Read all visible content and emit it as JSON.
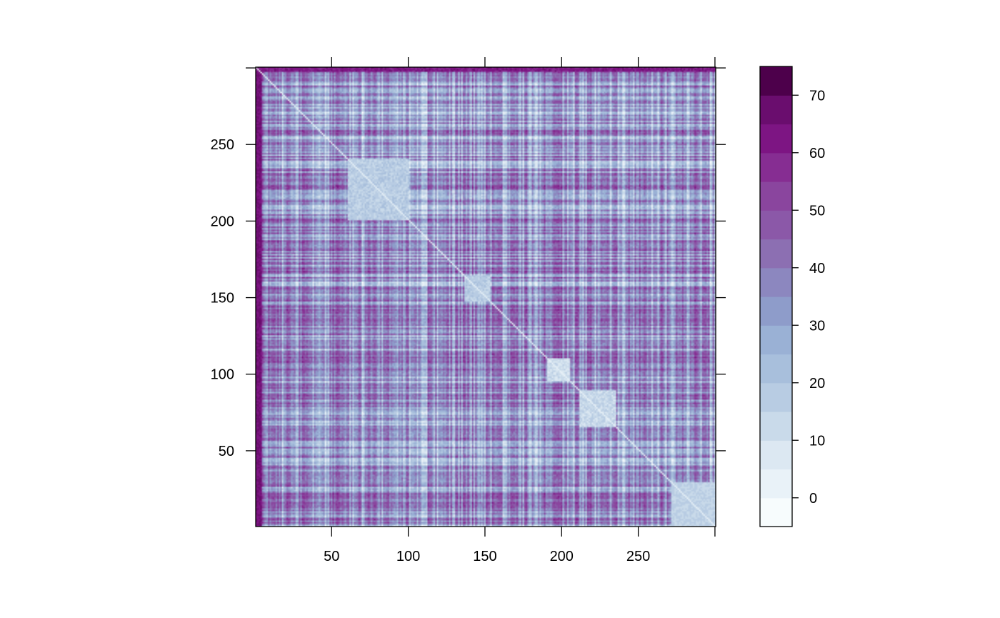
{
  "chart_data": {
    "type": "heatmap",
    "title": "",
    "xlabel": "",
    "ylabel": "",
    "n": 300,
    "xlim": [
      0.5,
      300.5
    ],
    "ylim": [
      0.5,
      300.5
    ],
    "x_ticks": [
      {
        "value": 50,
        "label": "50"
      },
      {
        "value": 100,
        "label": "100"
      },
      {
        "value": 150,
        "label": "150"
      },
      {
        "value": 200,
        "label": "200"
      },
      {
        "value": 250,
        "label": "250"
      },
      {
        "value": 300,
        "label": ""
      }
    ],
    "y_ticks": [
      {
        "value": 50,
        "label": "50"
      },
      {
        "value": 100,
        "label": "100"
      },
      {
        "value": 150,
        "label": "150"
      },
      {
        "value": 200,
        "label": "200"
      },
      {
        "value": 250,
        "label": "250"
      },
      {
        "value": 300,
        "label": ""
      }
    ],
    "diagonal_value": 0,
    "max_value": 75,
    "blocks": [
      {
        "from": 61,
        "to": 100,
        "value": 12
      },
      {
        "from": 137,
        "to": 153,
        "value": 12
      },
      {
        "from": 191,
        "to": 205,
        "value": 6
      },
      {
        "from": 212,
        "to": 235,
        "value": 8
      },
      {
        "from": 272,
        "to": 300,
        "value": 10
      }
    ],
    "colorbar": {
      "breaks": [
        -5,
        0,
        5,
        10,
        15,
        20,
        25,
        30,
        35,
        40,
        45,
        50,
        55,
        60,
        65,
        70,
        75
      ],
      "colors": [
        "#F7FCFD",
        "#E9F2F8",
        "#DCE8F2",
        "#C9DAEA",
        "#B8CCE3",
        "#A8BFDC",
        "#9AB1D5",
        "#8E9CCA",
        "#8C87BF",
        "#8C6FB2",
        "#8B58A8",
        "#8A459E",
        "#862D92",
        "#7D1583",
        "#6A0D6E",
        "#4D004B"
      ],
      "ticks": [
        {
          "value": 0,
          "label": "0"
        },
        {
          "value": 10,
          "label": "10"
        },
        {
          "value": 20,
          "label": "20"
        },
        {
          "value": 30,
          "label": "30"
        },
        {
          "value": 40,
          "label": "40"
        },
        {
          "value": 50,
          "label": "50"
        },
        {
          "value": 60,
          "label": "60"
        },
        {
          "value": 70,
          "label": "70"
        }
      ]
    }
  }
}
